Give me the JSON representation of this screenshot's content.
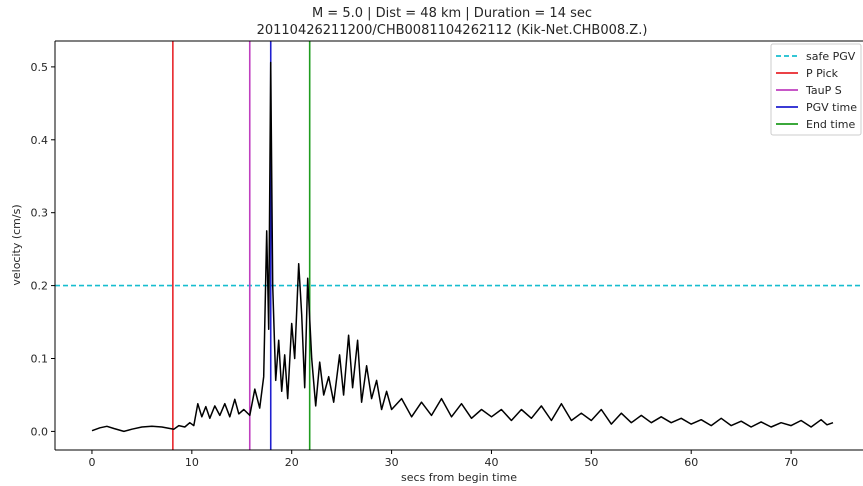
{
  "chart_data": {
    "type": "line",
    "title": "M = 5.0 | Dist = 48 km | Duration = 14 sec",
    "subtitle": "20110426211200/CHB0081104262112 (Kik-Net.CHB008.Z.)",
    "xlabel": "secs from begin time",
    "ylabel": "velocity (cm/s)",
    "xlim": [
      -3.7,
      77.2
    ],
    "ylim": [
      -0.0255,
      0.5355
    ],
    "x_ticks": [
      0,
      10,
      20,
      30,
      40,
      50,
      60,
      70
    ],
    "y_ticks": [
      0.0,
      0.1,
      0.2,
      0.3,
      0.4,
      0.5
    ],
    "x_tick_labels": [
      "0",
      "10",
      "20",
      "30",
      "40",
      "50",
      "60",
      "70"
    ],
    "y_tick_labels": [
      "0.0",
      "0.1",
      "0.2",
      "0.3",
      "0.4",
      "0.5"
    ],
    "grid": false,
    "legend_position": "top-right",
    "series": [
      {
        "name": "",
        "color": "#000000",
        "points": [
          [
            0.0,
            0.001
          ],
          [
            0.8,
            0.005
          ],
          [
            1.5,
            0.007
          ],
          [
            2.2,
            0.004
          ],
          [
            3.2,
            0.0
          ],
          [
            4.0,
            0.003
          ],
          [
            5.0,
            0.006
          ],
          [
            6.0,
            0.007
          ],
          [
            7.0,
            0.006
          ],
          [
            8.2,
            0.003
          ],
          [
            8.7,
            0.008
          ],
          [
            9.3,
            0.006
          ],
          [
            9.8,
            0.012
          ],
          [
            10.2,
            0.008
          ],
          [
            10.6,
            0.038
          ],
          [
            11.0,
            0.02
          ],
          [
            11.4,
            0.034
          ],
          [
            11.8,
            0.018
          ],
          [
            12.3,
            0.035
          ],
          [
            12.8,
            0.022
          ],
          [
            13.3,
            0.038
          ],
          [
            13.8,
            0.02
          ],
          [
            14.3,
            0.044
          ],
          [
            14.7,
            0.024
          ],
          [
            15.2,
            0.03
          ],
          [
            15.8,
            0.022
          ],
          [
            16.3,
            0.058
          ],
          [
            16.8,
            0.032
          ],
          [
            17.2,
            0.075
          ],
          [
            17.5,
            0.275
          ],
          [
            17.7,
            0.14
          ],
          [
            17.9,
            0.506
          ],
          [
            18.1,
            0.2
          ],
          [
            18.4,
            0.07
          ],
          [
            18.7,
            0.125
          ],
          [
            19.0,
            0.055
          ],
          [
            19.3,
            0.105
          ],
          [
            19.6,
            0.045
          ],
          [
            20.0,
            0.148
          ],
          [
            20.3,
            0.1
          ],
          [
            20.7,
            0.23
          ],
          [
            21.0,
            0.16
          ],
          [
            21.3,
            0.06
          ],
          [
            21.6,
            0.21
          ],
          [
            22.0,
            0.1
          ],
          [
            22.4,
            0.035
          ],
          [
            22.8,
            0.095
          ],
          [
            23.2,
            0.05
          ],
          [
            23.7,
            0.075
          ],
          [
            24.2,
            0.04
          ],
          [
            24.8,
            0.105
          ],
          [
            25.2,
            0.05
          ],
          [
            25.7,
            0.132
          ],
          [
            26.1,
            0.06
          ],
          [
            26.6,
            0.125
          ],
          [
            27.0,
            0.04
          ],
          [
            27.5,
            0.09
          ],
          [
            28.0,
            0.045
          ],
          [
            28.5,
            0.07
          ],
          [
            29.0,
            0.03
          ],
          [
            29.5,
            0.055
          ],
          [
            30.0,
            0.03
          ],
          [
            31.0,
            0.045
          ],
          [
            32.0,
            0.02
          ],
          [
            33.0,
            0.04
          ],
          [
            34.0,
            0.022
          ],
          [
            35.0,
            0.045
          ],
          [
            36.0,
            0.02
          ],
          [
            37.0,
            0.038
          ],
          [
            38.0,
            0.018
          ],
          [
            39.0,
            0.03
          ],
          [
            40.0,
            0.02
          ],
          [
            41.0,
            0.03
          ],
          [
            42.0,
            0.015
          ],
          [
            43.0,
            0.03
          ],
          [
            44.0,
            0.018
          ],
          [
            45.0,
            0.035
          ],
          [
            46.0,
            0.015
          ],
          [
            47.0,
            0.038
          ],
          [
            48.0,
            0.015
          ],
          [
            49.0,
            0.025
          ],
          [
            50.0,
            0.015
          ],
          [
            51.0,
            0.03
          ],
          [
            52.0,
            0.01
          ],
          [
            53.0,
            0.025
          ],
          [
            54.0,
            0.012
          ],
          [
            55.0,
            0.022
          ],
          [
            56.0,
            0.012
          ],
          [
            57.0,
            0.02
          ],
          [
            58.0,
            0.012
          ],
          [
            59.0,
            0.018
          ],
          [
            60.0,
            0.01
          ],
          [
            61.0,
            0.016
          ],
          [
            62.0,
            0.008
          ],
          [
            63.0,
            0.018
          ],
          [
            64.0,
            0.008
          ],
          [
            65.0,
            0.014
          ],
          [
            66.0,
            0.006
          ],
          [
            67.0,
            0.013
          ],
          [
            68.0,
            0.006
          ],
          [
            69.0,
            0.012
          ],
          [
            70.0,
            0.008
          ],
          [
            71.0,
            0.015
          ],
          [
            72.0,
            0.006
          ],
          [
            73.0,
            0.016
          ],
          [
            73.6,
            0.009
          ],
          [
            74.2,
            0.012
          ]
        ]
      }
    ],
    "reference_lines": [
      {
        "name": "safe PGV",
        "orientation": "horizontal",
        "value": 0.2,
        "color": "#17becf",
        "dashed": true
      },
      {
        "name": "P Pick",
        "orientation": "vertical",
        "value": 8.1,
        "color": "#e8262c",
        "dashed": false
      },
      {
        "name": "TauP S",
        "orientation": "vertical",
        "value": 15.8,
        "color": "#bf3fbf",
        "dashed": false
      },
      {
        "name": "PGV time",
        "orientation": "vertical",
        "value": 17.9,
        "color": "#1f1fcf",
        "dashed": false
      },
      {
        "name": "End time",
        "orientation": "vertical",
        "value": 21.8,
        "color": "#1f9c1f",
        "dashed": false
      }
    ],
    "legend": [
      {
        "label": "safe PGV",
        "color": "#17becf",
        "dashed": true
      },
      {
        "label": "P Pick",
        "color": "#e8262c",
        "dashed": false
      },
      {
        "label": "TauP S",
        "color": "#bf3fbf",
        "dashed": false
      },
      {
        "label": "PGV time",
        "color": "#1f1fcf",
        "dashed": false
      },
      {
        "label": "End time",
        "color": "#1f9c1f",
        "dashed": false
      }
    ]
  }
}
